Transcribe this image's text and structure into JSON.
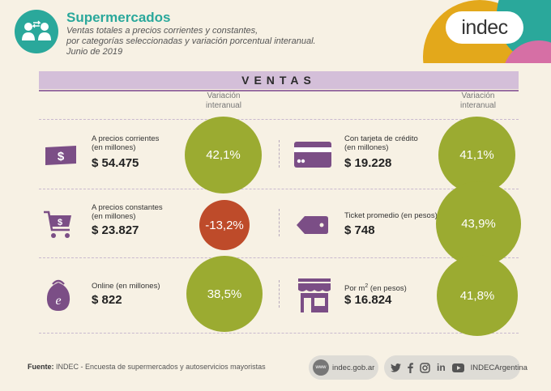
{
  "header": {
    "title": "Supermercados",
    "subtitle_line1": "Ventas totales a precios corrientes y constantes,",
    "subtitle_line2": "por categorías seleccionadas y variación porcentual interanual.",
    "subtitle_line3": "Junio de 2019",
    "logo_text": "indec"
  },
  "section_title": "VENTAS",
  "variation_header": {
    "line1": "Variación",
    "line2": "interanual"
  },
  "items": [
    {
      "label_line1": "A precios corrientes",
      "label_line2": "(en millones)",
      "value": "$ 54.475",
      "variation": "42,1%",
      "icon": "money-bill-icon"
    },
    {
      "label_line1": "Con tarjeta de crédito",
      "label_line2": "(en millones)",
      "value": "$ 19.228",
      "variation": "41,1%",
      "icon": "credit-card-icon"
    },
    {
      "label_line1": "A precios constantes",
      "label_line2": "(en millones)",
      "value": "$ 23.827",
      "variation": "-13,2%",
      "icon": "shopping-cart-icon"
    },
    {
      "label_line1": "Ticket promedio (en pesos)",
      "label_line2": "",
      "value": "$ 748",
      "variation": "43,9%",
      "icon": "price-tag-icon"
    },
    {
      "label_line1": "Online (en millones)",
      "label_line2": "",
      "value": "$ 822",
      "variation": "38,5%",
      "icon": "online-bag-icon"
    },
    {
      "label_line1": "Por m",
      "label_sup": "2",
      "label_after": " (en pesos)",
      "value": "$ 16.824",
      "variation": "41,8%",
      "icon": "store-icon"
    }
  ],
  "colors": {
    "teal": "#2aa89b",
    "positive": "#9bab31",
    "negative": "#be4b2a",
    "purple": "#7b4e86",
    "lilac": "#d4bfd9"
  },
  "footer": {
    "source_label": "Fuente:",
    "source_text": " INDEC - Encuesta de supermercados y autoservicios mayoristas",
    "www_badge": "www",
    "website": "indec.gob.ar",
    "social_handle": "INDECArgentina",
    "social_icons": [
      "twitter-icon",
      "facebook-icon",
      "instagram-icon",
      "linkedin-icon",
      "youtube-icon"
    ]
  }
}
